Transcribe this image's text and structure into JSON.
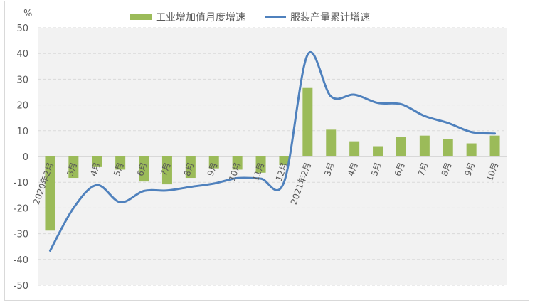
{
  "chart_data": {
    "type": "bar+line",
    "ylabel": "%",
    "ylim": [
      -50,
      50
    ],
    "yticks": [
      50,
      40,
      30,
      20,
      10,
      0,
      -10,
      -20,
      -30,
      -40,
      -50
    ],
    "grid": true,
    "legend_position": "top",
    "categories": [
      "2020年2月",
      "3月",
      "4月",
      "5月",
      "6月",
      "7月",
      "8月",
      "9月",
      "10月",
      "11月",
      "12月",
      "2021年2月",
      "3月",
      "4月",
      "5月",
      "6月",
      "7月",
      "8月",
      "9月",
      "10月"
    ],
    "series": [
      {
        "name": "工业增加值月度增速",
        "type": "bar",
        "color": "#9bbb59",
        "values": [
          -28.8,
          -8.3,
          -4.1,
          -5.1,
          -9.7,
          -10.8,
          -8.3,
          -4.6,
          -5.1,
          -6.3,
          -3.3,
          26.6,
          10.4,
          5.9,
          4.0,
          7.6,
          8.1,
          6.8,
          5.1,
          8.1
        ]
      },
      {
        "name": "服装产量累计增速",
        "type": "line",
        "color": "#4f81bd",
        "values": [
          -36.6,
          -20.0,
          -11.1,
          -17.8,
          -13.4,
          -13.2,
          -11.8,
          -10.5,
          -8.4,
          -8.6,
          -9.8,
          39.5,
          23.3,
          24.0,
          20.8,
          20.3,
          15.7,
          13.0,
          9.5,
          8.9
        ]
      }
    ]
  }
}
